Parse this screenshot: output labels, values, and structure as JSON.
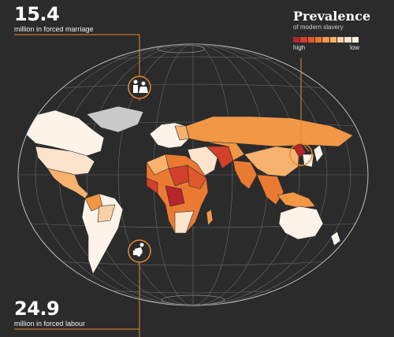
{
  "stats": {
    "forced_marriage": {
      "value": "15.4",
      "label": "million in forced marriage",
      "icon": "marriage-icon"
    },
    "forced_labour": {
      "value": "24.9",
      "label": "million in forced labour",
      "icon": "labour-icon"
    }
  },
  "legend": {
    "title": "Prevalence",
    "subtitle": "of modern slavery",
    "high_label": "high",
    "low_label": "low",
    "scale_colors": [
      "#b5252b",
      "#d0402a",
      "#e0582c",
      "#ea7a32",
      "#f29746",
      "#f6b26e",
      "#f9cfa5",
      "#fbe3cc",
      "#fdf1e5"
    ]
  },
  "colors": {
    "background": "#2b2b2b",
    "accent_line": "#e8892f",
    "graticule": "#6e6e6e",
    "no_data": "#c9c9c9",
    "low": "#fdf3e8"
  }
}
